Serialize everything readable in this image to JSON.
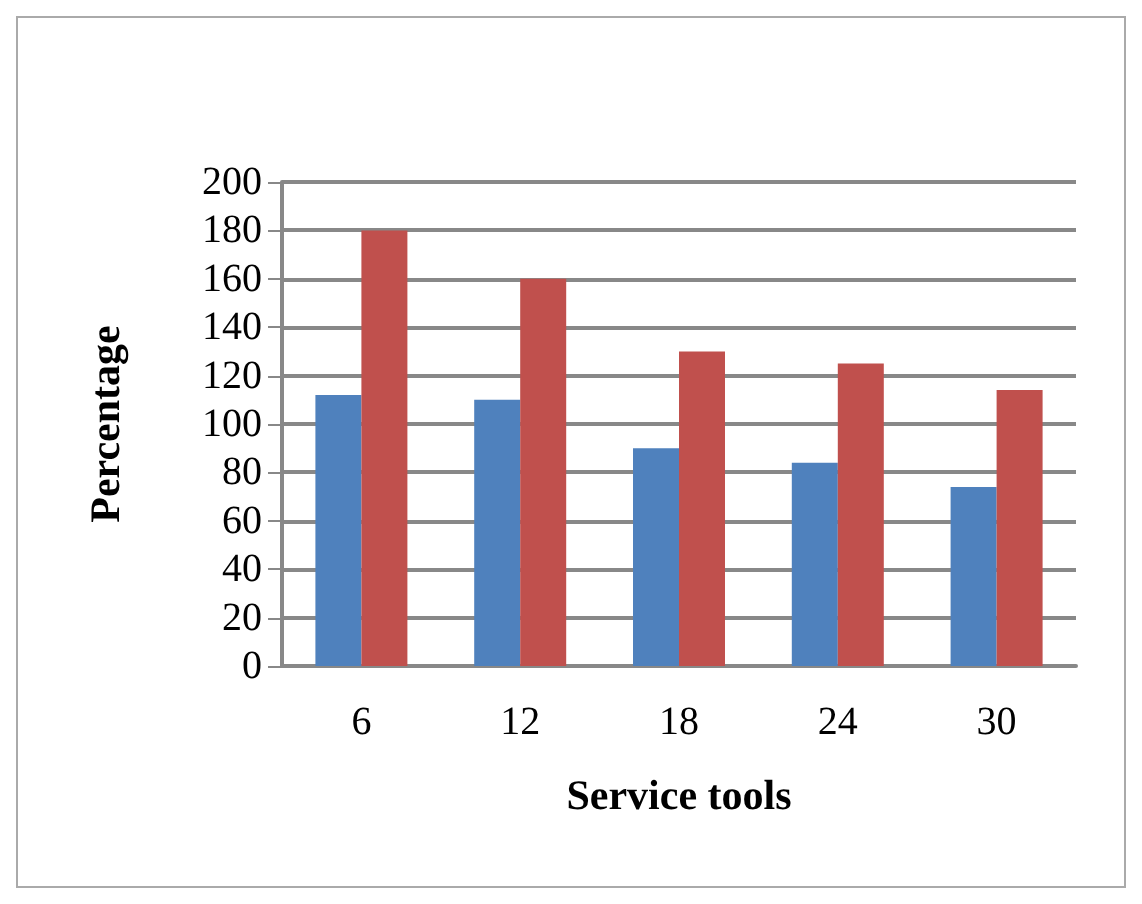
{
  "chart_data": {
    "type": "bar",
    "xlabel": "Service tools",
    "ylabel": "Percentage",
    "categories": [
      "6",
      "12",
      "18",
      "24",
      "30"
    ],
    "series": [
      {
        "color": "#4f81bd",
        "values": [
          112,
          110,
          90,
          84,
          74
        ]
      },
      {
        "color": "#c0504d",
        "values": [
          180,
          160,
          130,
          125,
          114
        ]
      }
    ],
    "ylim": [
      0,
      200
    ],
    "yticks": [
      0,
      20,
      40,
      60,
      80,
      100,
      120,
      140,
      160,
      180,
      200
    ],
    "grid": "y"
  }
}
